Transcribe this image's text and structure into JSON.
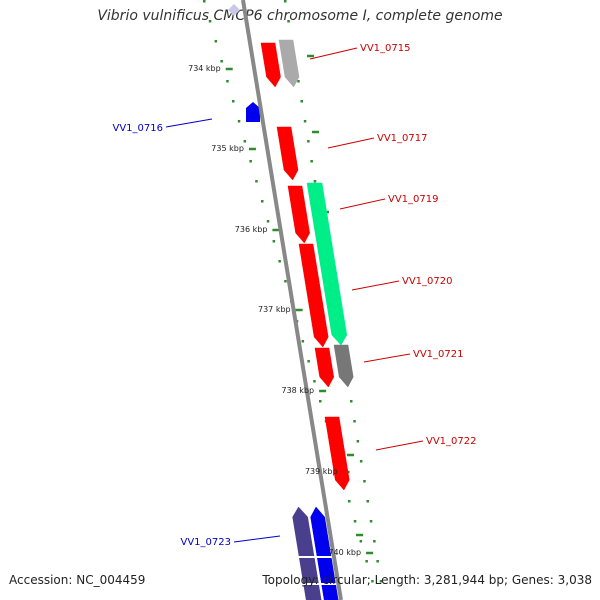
{
  "title": "Vibrio vulnificus CMCP6 chromosome I, complete genome",
  "footer": {
    "accession": "Accession: NC_004459",
    "summary": "Topology: circular; Length: 3,281,944 bp; Genes: 3,038"
  },
  "colors": {
    "backbone": "#888888",
    "tick": "#2e8b2e",
    "forward_gene": "#ff0000",
    "reverse_gene": "#0000ee",
    "forward_label": "#cc0000",
    "reverse_label": "#0000cc",
    "other_feature": "#00ee88",
    "pseudo_feature": "#777777",
    "blue_dark": "#4a3f8c"
  },
  "scale_labels": [
    "734 kbp",
    "735 kbp",
    "736 kbp",
    "737 kbp",
    "738 kbp",
    "739 kbp",
    "740 kbp"
  ],
  "genes": [
    {
      "id": "VV1_0715",
      "strand": "forward"
    },
    {
      "id": "VV1_0716",
      "strand": "reverse"
    },
    {
      "id": "VV1_0717",
      "strand": "forward"
    },
    {
      "id": "VV1_0719",
      "strand": "forward"
    },
    {
      "id": "VV1_0720",
      "strand": "forward"
    },
    {
      "id": "VV1_0721",
      "strand": "forward"
    },
    {
      "id": "VV1_0722",
      "strand": "forward"
    },
    {
      "id": "VV1_0723",
      "strand": "reverse"
    }
  ]
}
